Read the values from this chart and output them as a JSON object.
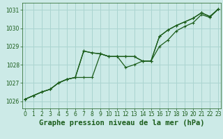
{
  "title": "Graphe pression niveau de la mer (hPa)",
  "bg_color": "#cceae7",
  "grid_color": "#aad4d0",
  "line_color": "#1a5c1a",
  "ylim": [
    1025.6,
    1031.4
  ],
  "xlim": [
    -0.3,
    23.3
  ],
  "yticks": [
    1026,
    1027,
    1028,
    1029,
    1030,
    1031
  ],
  "xticks": [
    0,
    1,
    2,
    3,
    4,
    5,
    6,
    7,
    8,
    9,
    10,
    11,
    12,
    13,
    14,
    15,
    16,
    17,
    18,
    19,
    20,
    21,
    22,
    23
  ],
  "series": [
    [
      1026.1,
      1026.3,
      1026.5,
      1026.65,
      1027.0,
      1027.2,
      1027.3,
      1028.75,
      1028.65,
      1028.6,
      1028.45,
      1028.45,
      1028.45,
      1028.45,
      1028.2,
      1028.2,
      1029.55,
      1029.9,
      1030.15,
      1030.35,
      1030.55,
      1030.85,
      1030.65,
      1031.05
    ],
    [
      1026.1,
      1026.3,
      1026.5,
      1026.65,
      1027.0,
      1027.2,
      1027.3,
      1027.3,
      1027.3,
      1028.6,
      1028.45,
      1028.45,
      1028.45,
      1028.45,
      1028.2,
      1028.2,
      1029.55,
      1029.9,
      1030.15,
      1030.35,
      1030.55,
      1030.85,
      1030.65,
      1031.05
    ],
    [
      1026.1,
      1026.3,
      1026.5,
      1026.65,
      1027.0,
      1027.2,
      1027.3,
      1028.75,
      1028.65,
      1028.6,
      1028.45,
      1028.45,
      1027.85,
      1028.0,
      1028.2,
      1028.2,
      1029.0,
      1029.35,
      1029.85,
      1030.1,
      1030.3,
      1030.75,
      1030.6,
      1031.05
    ]
  ],
  "marker": "+",
  "markersize": 3.5,
  "linewidth": 0.9,
  "title_fontsize": 7.5,
  "tick_fontsize": 5.5
}
